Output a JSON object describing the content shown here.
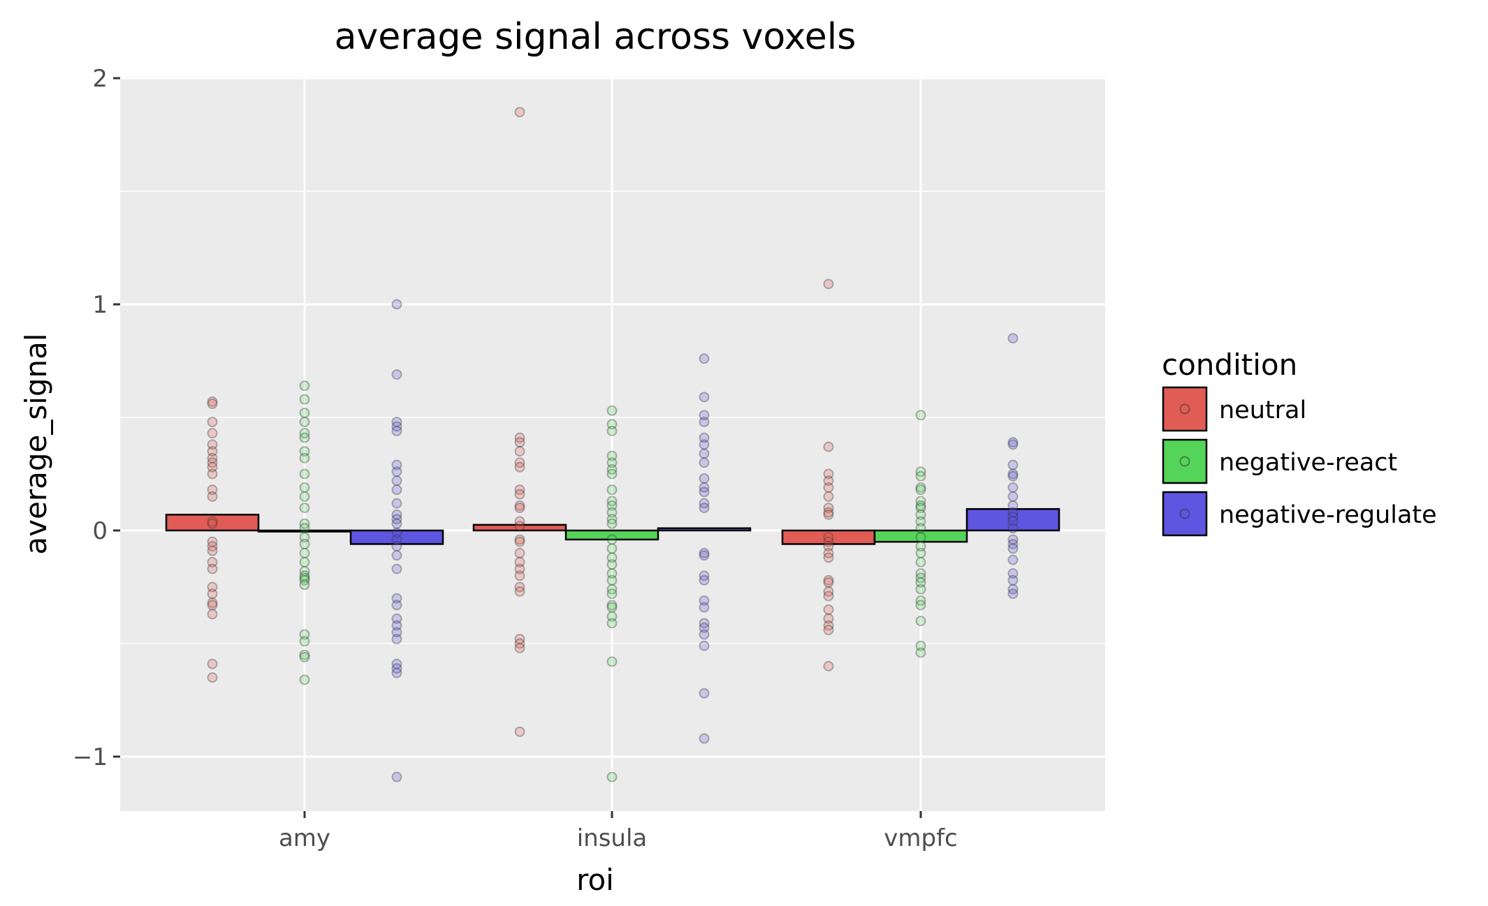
{
  "chart_data": {
    "type": "bar",
    "title": "average signal across voxels",
    "xlabel": "roi",
    "ylabel": "average_signal",
    "categories": [
      "amy",
      "insula",
      "vmpfc"
    ],
    "ylim": [
      -1.25,
      2.05
    ],
    "yticks": [
      -1,
      0,
      1,
      2
    ],
    "ytick_labels": [
      "−1",
      "0",
      "1",
      "2"
    ],
    "grid": true,
    "legend": {
      "title": "condition",
      "position": "right"
    },
    "colors": {
      "neutral": "#e15c55",
      "negative-react": "#55d45a",
      "negative-regulate": "#5e55e0"
    },
    "series": [
      {
        "name": "neutral",
        "values": [
          0.07,
          0.025,
          -0.06
        ],
        "points": [
          [
            0.57,
            0.56,
            0.48,
            0.43,
            0.38,
            0.35,
            0.32,
            0.3,
            0.28,
            0.25,
            0.18,
            0.15,
            0.04,
            0.03,
            -0.05,
            -0.07,
            -0.09,
            -0.14,
            -0.17,
            -0.25,
            -0.28,
            -0.32,
            -0.33,
            -0.37,
            -0.59,
            -0.65
          ],
          [
            1.85,
            0.41,
            0.39,
            0.35,
            0.3,
            0.28,
            0.18,
            0.16,
            0.11,
            0.1,
            0.04,
            0.02,
            -0.04,
            -0.05,
            -0.1,
            -0.14,
            -0.17,
            -0.2,
            -0.25,
            -0.27,
            -0.48,
            -0.5,
            -0.52,
            -0.89
          ],
          [
            1.09,
            0.37,
            0.25,
            0.22,
            0.19,
            0.15,
            0.1,
            0.08,
            0.07,
            -0.03,
            -0.05,
            -0.07,
            -0.1,
            -0.12,
            -0.22,
            -0.23,
            -0.27,
            -0.29,
            -0.35,
            -0.39,
            -0.42,
            -0.44,
            -0.6
          ]
        ]
      },
      {
        "name": "negative-react",
        "values": [
          -0.005,
          -0.04,
          -0.05
        ],
        "points": [
          [
            0.64,
            0.58,
            0.52,
            0.48,
            0.43,
            0.41,
            0.35,
            0.32,
            0.25,
            0.19,
            0.15,
            0.1,
            0.03,
            0.01,
            -0.03,
            -0.06,
            -0.1,
            -0.14,
            -0.18,
            -0.2,
            -0.21,
            -0.22,
            -0.24,
            -0.46,
            -0.49,
            -0.55,
            -0.56,
            -0.66
          ],
          [
            0.53,
            0.47,
            0.44,
            0.33,
            0.3,
            0.27,
            0.25,
            0.18,
            0.13,
            0.11,
            0.08,
            0.05,
            0.03,
            -0.04,
            -0.08,
            -0.12,
            -0.15,
            -0.19,
            -0.22,
            -0.26,
            -0.28,
            -0.33,
            -0.34,
            -0.38,
            -0.41,
            -0.58,
            -1.09
          ],
          [
            0.51,
            0.26,
            0.24,
            0.19,
            0.18,
            0.13,
            0.11,
            0.1,
            0.07,
            0.04,
            0.01,
            -0.03,
            -0.07,
            -0.1,
            -0.14,
            -0.19,
            -0.21,
            -0.23,
            -0.26,
            -0.31,
            -0.33,
            -0.4,
            -0.51,
            -0.54
          ]
        ]
      },
      {
        "name": "negative-regulate",
        "values": [
          -0.06,
          0.01,
          0.095
        ],
        "points": [
          [
            1.0,
            0.69,
            0.48,
            0.46,
            0.44,
            0.29,
            0.26,
            0.22,
            0.18,
            0.12,
            0.07,
            0.05,
            0.03,
            -0.01,
            -0.04,
            -0.07,
            -0.11,
            -0.17,
            -0.3,
            -0.33,
            -0.39,
            -0.42,
            -0.45,
            -0.48,
            -0.59,
            -0.61,
            -0.63,
            -1.09
          ],
          [
            0.76,
            0.59,
            0.51,
            0.48,
            0.41,
            0.38,
            0.34,
            0.3,
            0.23,
            0.19,
            0.17,
            0.12,
            0.1,
            -0.1,
            -0.11,
            -0.2,
            -0.22,
            -0.31,
            -0.34,
            -0.41,
            -0.43,
            -0.46,
            -0.51,
            -0.72,
            -0.92
          ],
          [
            0.85,
            0.39,
            0.38,
            0.29,
            0.25,
            0.24,
            0.19,
            0.15,
            0.11,
            0.08,
            0.06,
            0.04,
            0.01,
            -0.04,
            -0.06,
            -0.08,
            -0.13,
            -0.19,
            -0.22,
            -0.26,
            -0.28
          ]
        ]
      }
    ]
  }
}
